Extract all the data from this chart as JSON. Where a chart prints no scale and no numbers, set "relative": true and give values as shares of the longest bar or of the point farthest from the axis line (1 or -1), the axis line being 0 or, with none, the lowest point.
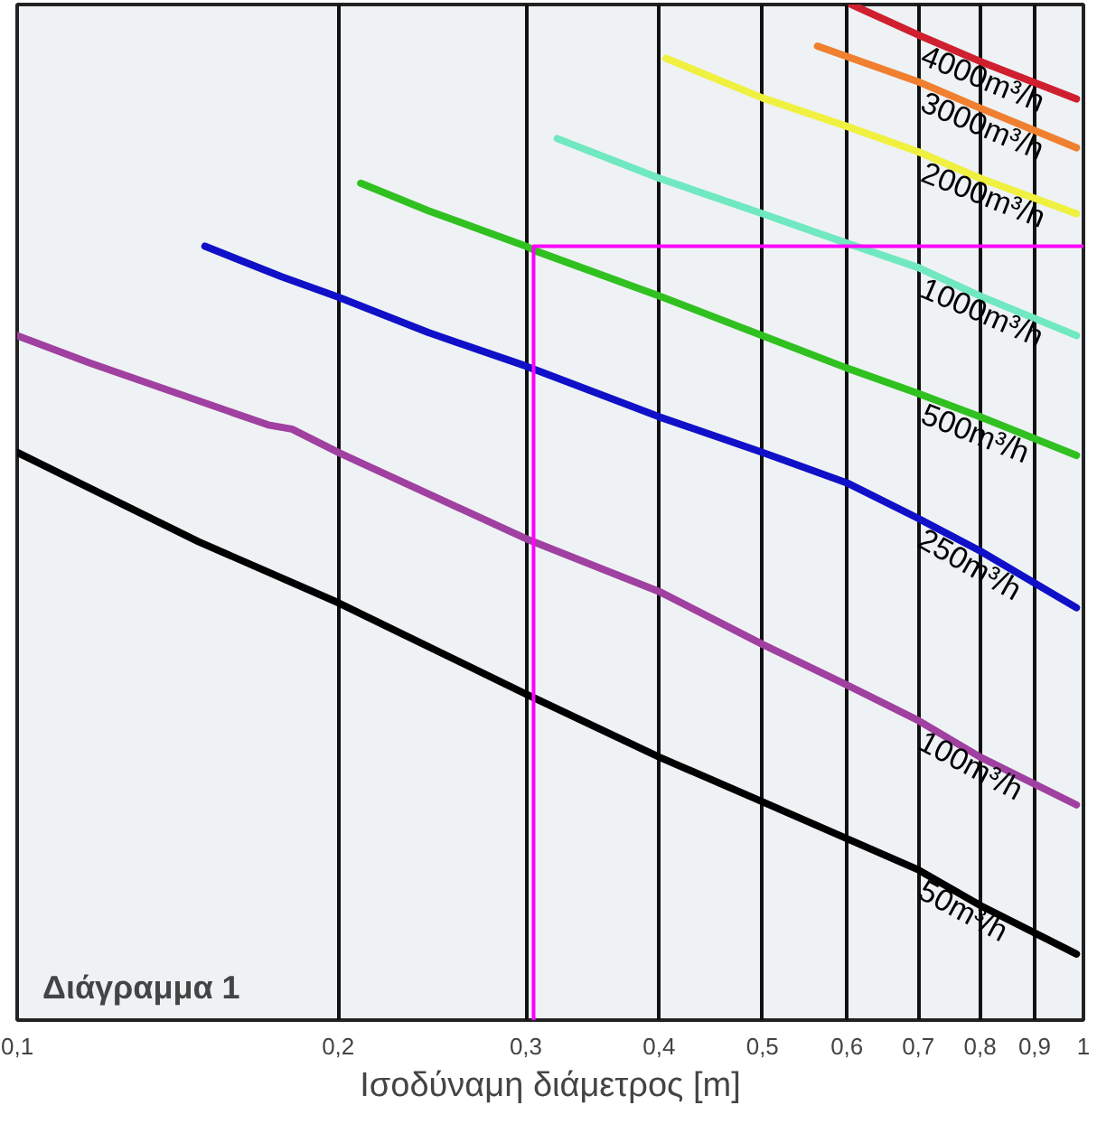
{
  "chart_data": {
    "type": "line",
    "relative": true,
    "log": "x",
    "grid": "x",
    "marker": "none",
    "line_style": "solid",
    "xlabel": "Ισοδύναμη διάμετρος [m]",
    "annotations": [
      "Διάγραμμα 1"
    ],
    "xlim": [
      0.1,
      1
    ],
    "xticks": [
      {
        "value": 0.1,
        "label": "0,1"
      },
      {
        "value": 0.2,
        "label": "0,2"
      },
      {
        "value": 0.3,
        "label": "0,3"
      },
      {
        "value": 0.4,
        "label": "0,4"
      },
      {
        "value": 0.5,
        "label": "0,5"
      },
      {
        "value": 0.6,
        "label": "0,6"
      },
      {
        "value": 0.7,
        "label": "0,7"
      },
      {
        "value": 0.8,
        "label": "0,8"
      },
      {
        "value": 0.9,
        "label": "0,9"
      },
      1
    ],
    "series": [
      {
        "name": "50m³/h",
        "color": "#000000",
        "x": [
          0.1,
          0.148,
          0.2,
          0.3,
          0.4,
          0.5,
          0.7,
          0.8,
          0.985
        ],
        "values": [
          0.559,
          0.471,
          0.411,
          0.321,
          0.259,
          0.215,
          0.148,
          0.113,
          0.065
        ]
      },
      {
        "name": "100m³/h",
        "color": "#a040a0",
        "x": [
          0.1,
          0.117,
          0.172,
          0.181,
          0.2,
          0.3,
          0.4,
          0.5,
          0.6,
          0.7,
          0.8,
          0.985
        ],
        "values": [
          0.674,
          0.647,
          0.586,
          0.582,
          0.559,
          0.474,
          0.422,
          0.37,
          0.33,
          0.295,
          0.259,
          0.212
        ]
      },
      {
        "name": "250m³/h",
        "color": "#1010c8",
        "x": [
          0.15,
          0.177,
          0.2,
          0.243,
          0.3,
          0.4,
          0.5,
          0.6,
          0.7,
          0.8,
          0.985
        ],
        "values": [
          0.762,
          0.732,
          0.712,
          0.677,
          0.644,
          0.594,
          0.559,
          0.529,
          0.494,
          0.462,
          0.406
        ]
      },
      {
        "name": "500m³/h",
        "color": "#30c020",
        "x": [
          0.21,
          0.243,
          0.3,
          0.307,
          0.4,
          0.5,
          0.6,
          0.7,
          0.8,
          0.985
        ],
        "values": [
          0.824,
          0.797,
          0.762,
          0.757,
          0.713,
          0.674,
          0.642,
          0.617,
          0.594,
          0.556
        ]
      },
      {
        "name": "1000m³/h",
        "color": "#70e8c0",
        "x": [
          0.321,
          0.4,
          0.5,
          0.6,
          0.7,
          0.8,
          0.985
        ],
        "values": [
          0.868,
          0.829,
          0.794,
          0.765,
          0.741,
          0.713,
          0.674
        ]
      },
      {
        "name": "2000m³/h",
        "color": "#f0f040",
        "x": [
          0.406,
          0.5,
          0.6,
          0.7,
          0.8,
          0.985
        ],
        "values": [
          0.947,
          0.908,
          0.88,
          0.855,
          0.829,
          0.794
        ]
      },
      {
        "name": "3000m³/h",
        "color": "#f08030",
        "x": [
          0.563,
          0.7,
          0.8,
          0.985
        ],
        "values": [
          0.959,
          0.924,
          0.898,
          0.859
        ]
      },
      {
        "name": "4000m³/h",
        "color": "#d02030",
        "x": [
          0.606,
          0.7,
          0.8,
          0.985
        ],
        "values": [
          1,
          0.97,
          0.944,
          0.907
        ]
      },
      {
        "color": "#ff00ff",
        "x": [
          0.305,
          0.305,
          1
        ],
        "values": [
          0,
          0.762,
          0.762
        ]
      }
    ]
  }
}
